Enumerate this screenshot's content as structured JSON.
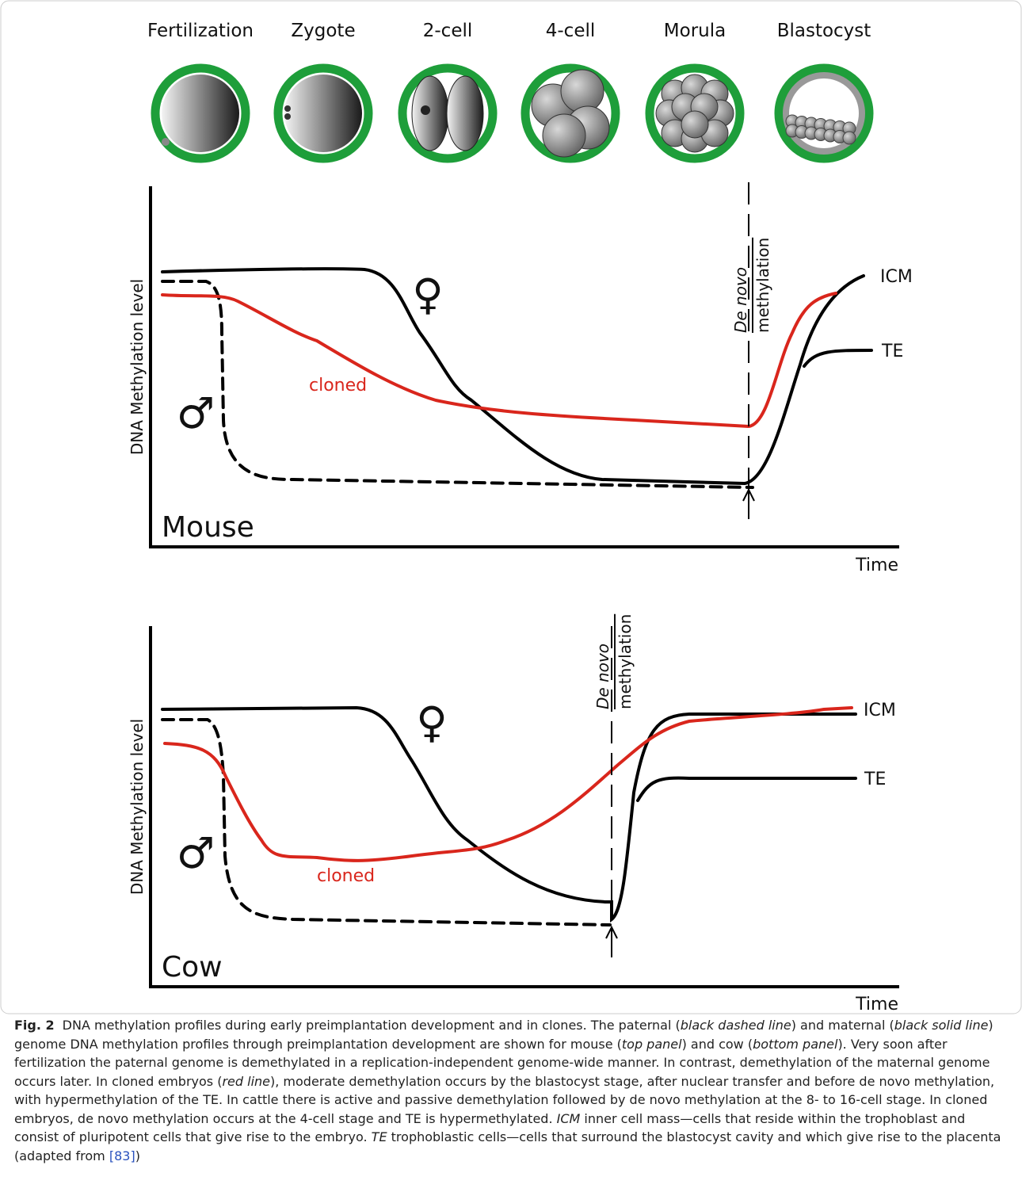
{
  "stages": [
    "Fertilization",
    "Zygote",
    "2-cell",
    "4-cell",
    "Morula",
    "Blastocyst"
  ],
  "panels": [
    {
      "title": "Mouse",
      "y_label": "DNA Methylation level",
      "x_label": "Time",
      "annotation_top": "De novo",
      "annotation_bottom": "methylation",
      "female": "♀",
      "male": "♂",
      "cloned": "cloned",
      "icm": "ICM",
      "te": "TE"
    },
    {
      "title": "Cow",
      "y_label": "DNA Methylation level",
      "x_label": "Time",
      "annotation_top": "De novo",
      "annotation_bottom": "methylation",
      "female": "♀",
      "male": "♂",
      "cloned": "cloned",
      "icm": "ICM",
      "te": "TE"
    }
  ],
  "caption": {
    "segments": [
      "Fig. 2",
      "DNA methylation profiles during early preimplantation development and in clones. The paternal (",
      "black dashed line",
      ") and maternal (",
      "black solid line",
      ") genome DNA methylation profiles through preimplantation development are shown for mouse (",
      "top panel",
      ") and cow (",
      "bottom panel",
      "). Very soon after fertilization the paternal genome is demethylated in a replication-independent genome-wide manner. In contrast, demethylation of the maternal genome occurs later. In cloned embryos (",
      "red line",
      "), moderate demethylation occurs by the blastocyst stage, after nuclear transfer and before de novo methylation, with hypermethylation of the TE. In cattle there is active and passive demethylation followed by de novo methylation at the 8- to 16-cell stage. In cloned embryos, de novo methylation occurs at the 4-cell stage and TE is hypermethylated. ",
      "ICM",
      " inner cell mass—cells that reside within the trophoblast and consist of pluripotent cells that give rise to the embryo. ",
      "TE",
      " trophoblastic cells—cells that surround the blastocyst cavity and which give rise to the placenta (adapted from ",
      "[83]",
      ")"
    ]
  }
}
